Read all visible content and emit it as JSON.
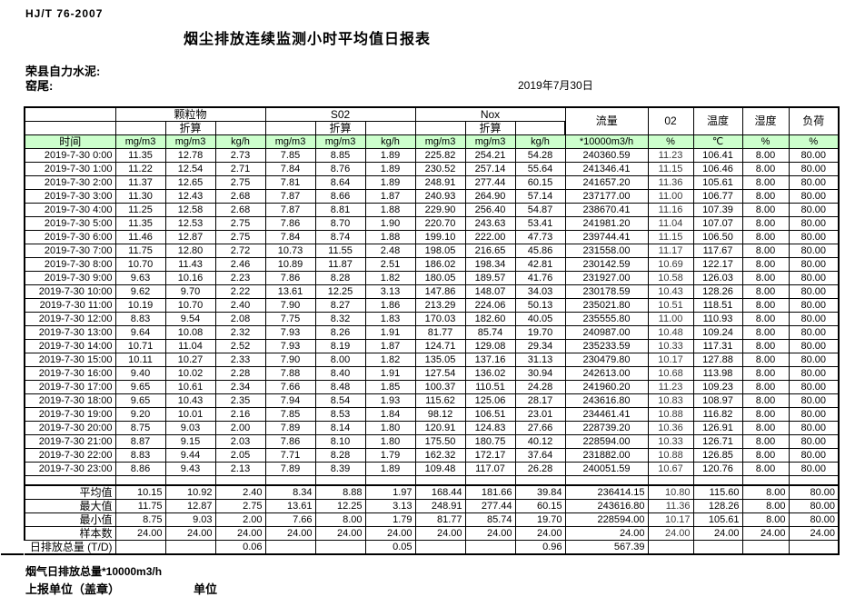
{
  "page": {
    "standard": "HJ/T  76-2007",
    "title": "烟尘排放连续监测小时平均值日报表",
    "company_line": "荣县自力水泥:",
    "station_line": "窑尾:",
    "date": "2019年7月30日"
  },
  "colors": {
    "header_green": "#ccffcc"
  },
  "table": {
    "time_header": "时间",
    "group_headers": [
      "颗粒物",
      "S02",
      "Nox"
    ],
    "converted_label": "折算",
    "flow_header": "流量",
    "o2_header": "02",
    "temperature_header": "温度",
    "humidity_header": "湿度",
    "load_header": "负荷",
    "units": [
      "mg/m3",
      "mg/m3",
      "kg/h",
      "mg/m3",
      "mg/m3",
      "kg/h",
      "mg/m3",
      "mg/m3",
      "kg/h",
      "*10000m3/h",
      "%",
      "℃",
      "%",
      "%"
    ],
    "rows": [
      {
        "time": "2019-7-30 0:00",
        "values": [
          "11.35",
          "12.78",
          "2.73",
          "7.85",
          "8.85",
          "1.89",
          "225.82",
          "254.21",
          "54.28",
          "240360.59",
          "11.23",
          "106.41",
          "8.00",
          "80.00"
        ]
      },
      {
        "time": "2019-7-30 1:00",
        "values": [
          "11.22",
          "12.54",
          "2.71",
          "7.84",
          "8.76",
          "1.89",
          "230.52",
          "257.14",
          "55.64",
          "241346.41",
          "11.15",
          "106.46",
          "8.00",
          "80.00"
        ]
      },
      {
        "time": "2019-7-30 2:00",
        "values": [
          "11.37",
          "12.65",
          "2.75",
          "7.81",
          "8.64",
          "1.89",
          "248.91",
          "277.44",
          "60.15",
          "241657.20",
          "11.36",
          "105.61",
          "8.00",
          "80.00"
        ]
      },
      {
        "time": "2019-7-30 3:00",
        "values": [
          "11.30",
          "12.43",
          "2.68",
          "7.87",
          "8.66",
          "1.87",
          "240.93",
          "264.90",
          "57.14",
          "237177.00",
          "11.00",
          "106.77",
          "8.00",
          "80.00"
        ]
      },
      {
        "time": "2019-7-30 4:00",
        "values": [
          "11.25",
          "12.58",
          "2.68",
          "7.87",
          "8.81",
          "1.88",
          "229.90",
          "256.40",
          "54.87",
          "238670.41",
          "11.16",
          "107.39",
          "8.00",
          "80.00"
        ]
      },
      {
        "time": "2019-7-30 5:00",
        "values": [
          "11.35",
          "12.53",
          "2.75",
          "7.86",
          "8.70",
          "1.90",
          "220.70",
          "243.63",
          "53.41",
          "241981.20",
          "11.04",
          "107.07",
          "8.00",
          "80.00"
        ]
      },
      {
        "time": "2019-7-30 6:00",
        "values": [
          "11.46",
          "12.87",
          "2.75",
          "7.84",
          "8.74",
          "1.88",
          "199.10",
          "222.00",
          "47.73",
          "239744.41",
          "11.15",
          "106.50",
          "8.00",
          "80.00"
        ]
      },
      {
        "time": "2019-7-30 7:00",
        "values": [
          "11.75",
          "12.80",
          "2.72",
          "10.73",
          "11.55",
          "2.48",
          "198.05",
          "216.65",
          "45.86",
          "231558.00",
          "11.17",
          "117.67",
          "8.00",
          "80.00"
        ]
      },
      {
        "time": "2019-7-30 8:00",
        "values": [
          "10.70",
          "11.43",
          "2.46",
          "10.89",
          "11.87",
          "2.51",
          "186.02",
          "198.34",
          "42.81",
          "230142.59",
          "10.69",
          "122.17",
          "8.00",
          "80.00"
        ]
      },
      {
        "time": "2019-7-30 9:00",
        "values": [
          "9.63",
          "10.16",
          "2.23",
          "7.86",
          "8.28",
          "1.82",
          "180.05",
          "189.57",
          "41.76",
          "231927.00",
          "10.58",
          "126.03",
          "8.00",
          "80.00"
        ]
      },
      {
        "time": "2019-7-30 10:00",
        "values": [
          "9.62",
          "9.70",
          "2.22",
          "13.61",
          "12.25",
          "3.13",
          "147.86",
          "148.07",
          "34.03",
          "230178.59",
          "10.43",
          "128.26",
          "8.00",
          "80.00"
        ]
      },
      {
        "time": "2019-7-30 11:00",
        "values": [
          "10.19",
          "10.70",
          "2.40",
          "7.90",
          "8.27",
          "1.86",
          "213.29",
          "224.06",
          "50.13",
          "235021.80",
          "10.51",
          "118.51",
          "8.00",
          "80.00"
        ]
      },
      {
        "time": "2019-7-30 12:00",
        "values": [
          "8.83",
          "9.54",
          "2.08",
          "7.75",
          "8.32",
          "1.83",
          "170.03",
          "182.60",
          "40.05",
          "235555.80",
          "11.00",
          "110.93",
          "8.00",
          "80.00"
        ]
      },
      {
        "time": "2019-7-30 13:00",
        "values": [
          "9.64",
          "10.08",
          "2.32",
          "7.93",
          "8.26",
          "1.91",
          "81.77",
          "85.74",
          "19.70",
          "240987.00",
          "10.48",
          "109.24",
          "8.00",
          "80.00"
        ]
      },
      {
        "time": "2019-7-30 14:00",
        "values": [
          "10.71",
          "11.04",
          "2.52",
          "7.93",
          "8.19",
          "1.87",
          "124.71",
          "129.08",
          "29.34",
          "235233.59",
          "10.33",
          "117.31",
          "8.00",
          "80.00"
        ]
      },
      {
        "time": "2019-7-30 15:00",
        "values": [
          "10.11",
          "10.27",
          "2.33",
          "7.90",
          "8.00",
          "1.82",
          "135.05",
          "137.16",
          "31.13",
          "230479.80",
          "10.17",
          "127.88",
          "8.00",
          "80.00"
        ]
      },
      {
        "time": "2019-7-30 16:00",
        "values": [
          "9.40",
          "10.02",
          "2.28",
          "7.88",
          "8.40",
          "1.91",
          "127.54",
          "136.02",
          "30.94",
          "242613.00",
          "10.68",
          "113.98",
          "8.00",
          "80.00"
        ]
      },
      {
        "time": "2019-7-30 17:00",
        "values": [
          "9.65",
          "10.61",
          "2.34",
          "7.66",
          "8.48",
          "1.85",
          "100.37",
          "110.51",
          "24.28",
          "241960.20",
          "11.23",
          "109.23",
          "8.00",
          "80.00"
        ]
      },
      {
        "time": "2019-7-30 18:00",
        "values": [
          "9.65",
          "10.43",
          "2.35",
          "7.94",
          "8.54",
          "1.93",
          "115.62",
          "125.06",
          "28.17",
          "243616.80",
          "10.83",
          "108.97",
          "8.00",
          "80.00"
        ]
      },
      {
        "time": "2019-7-30 19:00",
        "values": [
          "9.20",
          "10.01",
          "2.16",
          "7.85",
          "8.53",
          "1.84",
          "98.12",
          "106.51",
          "23.01",
          "234461.41",
          "10.88",
          "116.82",
          "8.00",
          "80.00"
        ]
      },
      {
        "time": "2019-7-30 20:00",
        "values": [
          "8.75",
          "9.03",
          "2.00",
          "7.89",
          "8.14",
          "1.80",
          "120.91",
          "124.83",
          "27.66",
          "228739.20",
          "10.36",
          "126.91",
          "8.00",
          "80.00"
        ]
      },
      {
        "time": "2019-7-30 21:00",
        "values": [
          "8.87",
          "9.15",
          "2.03",
          "7.86",
          "8.10",
          "1.80",
          "175.50",
          "180.75",
          "40.12",
          "228594.00",
          "10.33",
          "126.71",
          "8.00",
          "80.00"
        ]
      },
      {
        "time": "2019-7-30 22:00",
        "values": [
          "8.83",
          "9.44",
          "2.05",
          "7.71",
          "8.28",
          "1.79",
          "162.32",
          "172.17",
          "37.64",
          "231882.00",
          "10.88",
          "126.85",
          "8.00",
          "80.00"
        ]
      },
      {
        "time": "2019-7-30 23:00",
        "values": [
          "8.86",
          "9.43",
          "2.13",
          "7.89",
          "8.39",
          "1.89",
          "109.48",
          "117.07",
          "26.28",
          "240051.59",
          "10.67",
          "120.76",
          "8.00",
          "80.00"
        ]
      }
    ],
    "summary_rows": [
      {
        "label": "平均值",
        "values": [
          "10.15",
          "10.92",
          "2.40",
          "8.34",
          "8.88",
          "1.97",
          "168.44",
          "181.66",
          "39.84",
          "236414.15",
          "10.80",
          "115.60",
          "8.00",
          "80.00"
        ]
      },
      {
        "label": "最大值",
        "values": [
          "11.75",
          "12.87",
          "2.75",
          "13.61",
          "12.25",
          "3.13",
          "248.91",
          "277.44",
          "60.15",
          "243616.80",
          "11.36",
          "128.26",
          "8.00",
          "80.00"
        ]
      },
      {
        "label": "最小值",
        "values": [
          "8.75",
          "9.03",
          "2.00",
          "7.66",
          "8.00",
          "1.79",
          "81.77",
          "85.74",
          "19.70",
          "228594.00",
          "10.17",
          "105.61",
          "8.00",
          "80.00"
        ]
      },
      {
        "label": "样本数",
        "values": [
          "24.00",
          "24.00",
          "24.00",
          "24.00",
          "24.00",
          "24.00",
          "24.00",
          "24.00",
          "24.00",
          "24.00",
          "24.00",
          "24.00",
          "24.00",
          "24.00"
        ]
      }
    ],
    "total_row": {
      "label": "日排放总量 (T/D)",
      "values": [
        "",
        "",
        "0.06",
        "",
        "",
        "0.05",
        "",
        "",
        "0.96",
        "567.39",
        "",
        "",
        "",
        ""
      ]
    }
  },
  "footer": {
    "flue_total_label": "烟气日排放总量*10000m3/h",
    "report_unit_label": "上报单位（盖章）",
    "unit_label": "单位"
  }
}
